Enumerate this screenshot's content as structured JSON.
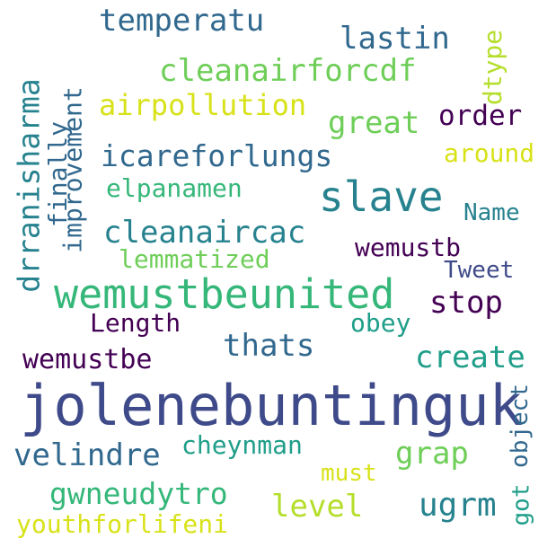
{
  "colors": {
    "purple": "#440154",
    "indigo": "#3e4a89",
    "blue": "#31688e",
    "teal": "#26828e",
    "green_teal": "#1f9e89",
    "green": "#35b779",
    "light_green": "#6ece58",
    "yellow_green": "#b5de2b",
    "yellow": "#d8e219"
  },
  "words": {
    "temperatu": "temperatu",
    "lastin": "lastin",
    "dtype": "dtype",
    "cleanairforcdf": "cleanairforcdf",
    "drranisharma": "drranisharma",
    "improvement": "improvement",
    "airpollution": "airpollution",
    "great": "great",
    "order": "order",
    "finally": "finally",
    "icareforlungs": "icareforlungs",
    "around": "around",
    "elpanamen": "elpanamen",
    "slave": "slave",
    "name": "Name",
    "cleanaircac": "cleanaircac",
    "wemustb": "wemustb",
    "lemmatized": "lemmatized",
    "tweet": "Tweet",
    "wemustbeunited": "wemustbeunited",
    "stop": "stop",
    "length": "Length",
    "obey": "obey",
    "thats": "thats",
    "wemustbe": "wemustbe",
    "create": "create",
    "jolenebuntinguk": "jolenebuntinguk",
    "object": "object",
    "cheynman": "cheynman",
    "velindre": "velindre",
    "grap": "grap",
    "must": "must",
    "gwneudytro": "gwneudytro",
    "level": "level",
    "ugrm": "ugrm",
    "got": "got",
    "youthforlifeni": "youthforlifeni"
  }
}
